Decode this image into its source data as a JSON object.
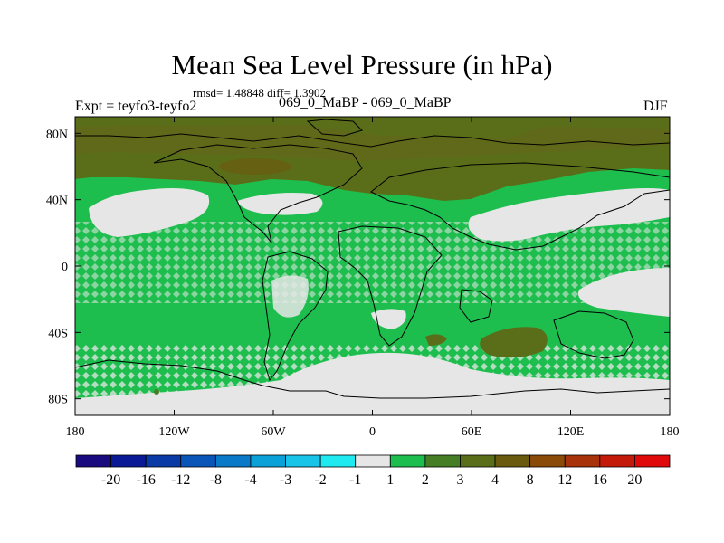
{
  "header": {
    "title": "Mean Sea Level Pressure (in hPa)",
    "stats": "rmsd= 1.48848 diff= 1.3902",
    "experiment": "Expt = teyfo3-teyfo2",
    "runs": "069_0_MaBP - 069_0_MaBP",
    "season": "DJF"
  },
  "chart_data": {
    "type": "heatmap",
    "title": "Mean Sea Level Pressure (in hPa)",
    "xlabel": "",
    "ylabel": "",
    "xlim": [
      -180,
      180
    ],
    "ylim": [
      -90,
      90
    ],
    "x_ticks": [
      -180,
      -120,
      -60,
      0,
      60,
      120,
      180
    ],
    "x_tick_labels": [
      "180",
      "120W",
      "60W",
      "0",
      "60E",
      "120E",
      "180"
    ],
    "y_ticks": [
      80,
      40,
      0,
      -40,
      -80
    ],
    "y_tick_labels": [
      "80N",
      "40N",
      "0",
      "40S",
      "80S"
    ],
    "colorbar": {
      "boundaries": [
        "-20",
        "-16",
        "-12",
        "-8",
        "-4",
        "-3",
        "-2",
        "-1",
        "1",
        "2",
        "3",
        "4",
        "8",
        "12",
        "16",
        "20"
      ],
      "colors": [
        "#1a0a80",
        "#0a1a96",
        "#0a3aa6",
        "#0a56b8",
        "#0a7ac8",
        "#0aa0d8",
        "#18c4e8",
        "#1eeaf0",
        "#e6e6e6",
        "#1ebe4e",
        "#467e26",
        "#5a6e1a",
        "#6a5a10",
        "#8a4a08",
        "#a8320a",
        "#c41a0a",
        "#e00a0a"
      ]
    },
    "regions": [
      {
        "name": "arctic-high",
        "level": "3 to 4",
        "color": "#5a6e1a",
        "lon": [
          -180,
          180
        ],
        "lat": [
          52,
          90
        ]
      },
      {
        "name": "north-pacific-low-change",
        "level": "-1 to 1",
        "color": "#e6e6e6",
        "lon": [
          -165,
          -120
        ],
        "lat": [
          30,
          45
        ]
      },
      {
        "name": "north-atlantic-low-change",
        "level": "-1 to 1",
        "color": "#e6e6e6",
        "lon": [
          -75,
          -30
        ],
        "lat": [
          30,
          45
        ]
      },
      {
        "name": "asia-low-change",
        "level": "-1 to 1",
        "color": "#e6e6e6",
        "lon": [
          55,
          180
        ],
        "lat": [
          10,
          45
        ]
      },
      {
        "name": "indian-ocean-high",
        "level": "3 to 4",
        "color": "#5a6e1a",
        "lon": [
          70,
          110
        ],
        "lat": [
          -55,
          -30
        ]
      },
      {
        "name": "southern-ocean-low-change",
        "level": "-1 to 1",
        "color": "#e6e6e6",
        "lon": [
          -180,
          180
        ],
        "lat": [
          -90,
          -60
        ]
      }
    ]
  }
}
